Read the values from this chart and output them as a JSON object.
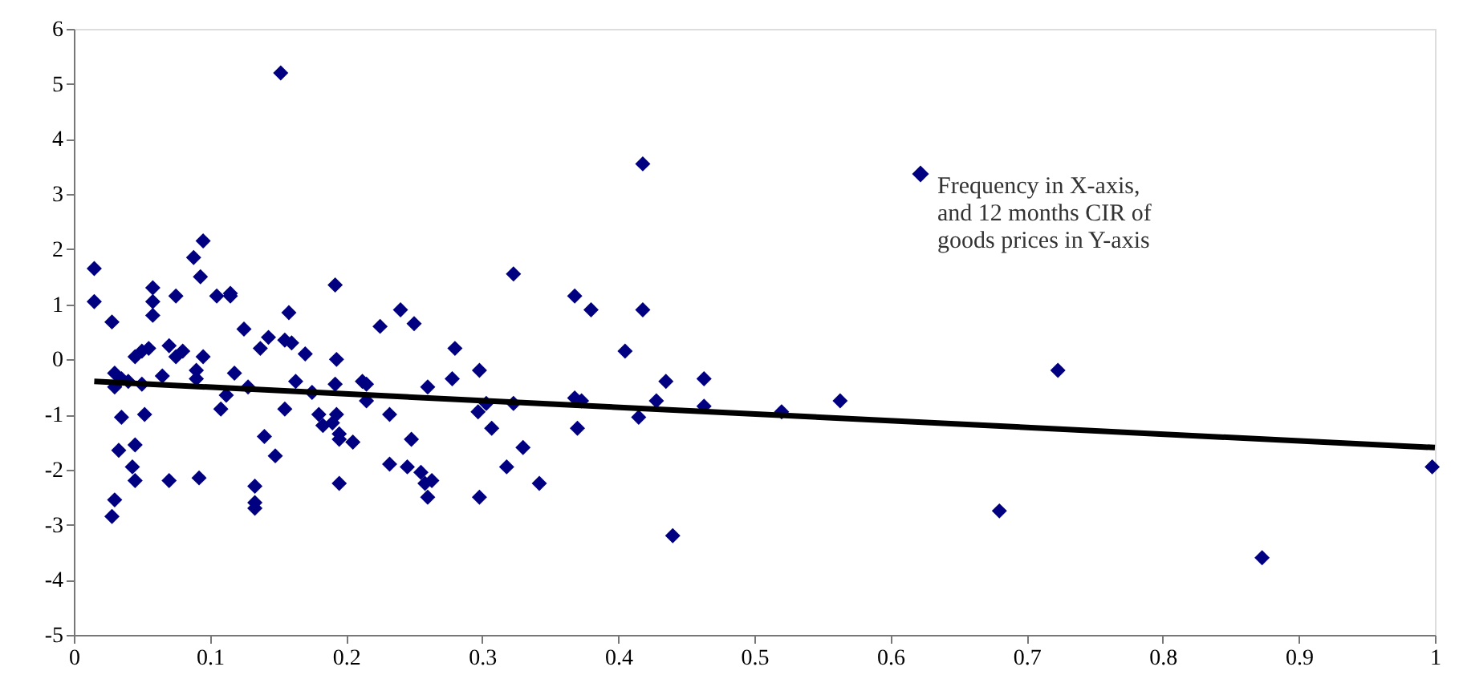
{
  "chart_data": {
    "type": "scatter",
    "xlim": [
      0,
      1
    ],
    "xticks": [
      0,
      0.1,
      0.2,
      0.3,
      0.4,
      0.5,
      0.6,
      0.7,
      0.8,
      0.9,
      1
    ],
    "ylim": [
      -5,
      6
    ],
    "yticks": [
      -5,
      -4,
      -3,
      -2,
      -1,
      0,
      1,
      2,
      3,
      4,
      5,
      6
    ],
    "grid": false,
    "legend": "top right",
    "marker": "diamond",
    "series": [
      {
        "name": "Frequency in X-axis,\nand 12 months CIR of\ngoods prices in Y-axis",
        "color": "#000080",
        "x": [
          0.015,
          0.015,
          0.028,
          0.03,
          0.03,
          0.035,
          0.035,
          0.033,
          0.03,
          0.028,
          0.04,
          0.045,
          0.045,
          0.043,
          0.045,
          0.05,
          0.05,
          0.052,
          0.055,
          0.058,
          0.058,
          0.058,
          0.065,
          0.07,
          0.07,
          0.075,
          0.075,
          0.08,
          0.088,
          0.09,
          0.09,
          0.092,
          0.093,
          0.095,
          0.095,
          0.105,
          0.108,
          0.112,
          0.115,
          0.115,
          0.118,
          0.125,
          0.128,
          0.133,
          0.133,
          0.133,
          0.137,
          0.14,
          0.143,
          0.148,
          0.152,
          0.155,
          0.155,
          0.158,
          0.16,
          0.163,
          0.17,
          0.175,
          0.18,
          0.183,
          0.19,
          0.192,
          0.192,
          0.193,
          0.193,
          0.195,
          0.195,
          0.195,
          0.205,
          0.212,
          0.215,
          0.215,
          0.225,
          0.232,
          0.232,
          0.24,
          0.245,
          0.248,
          0.25,
          0.255,
          0.258,
          0.26,
          0.26,
          0.263,
          0.278,
          0.28,
          0.297,
          0.298,
          0.298,
          0.303,
          0.307,
          0.318,
          0.323,
          0.323,
          0.33,
          0.342,
          0.368,
          0.368,
          0.37,
          0.373,
          0.38,
          0.405,
          0.415,
          0.418,
          0.418,
          0.428,
          0.435,
          0.44,
          0.463,
          0.463,
          0.52,
          0.563,
          0.68,
          0.723,
          0.873,
          0.998
        ],
        "values": [
          1.65,
          1.05,
          0.68,
          -0.25,
          -0.5,
          -0.35,
          -1.05,
          -1.65,
          -2.55,
          -2.85,
          -0.4,
          0.05,
          -1.55,
          -1.95,
          -2.2,
          0.15,
          -0.45,
          -1.0,
          0.2,
          1.3,
          1.05,
          0.8,
          -0.3,
          0.25,
          -2.2,
          1.15,
          0.05,
          0.15,
          1.85,
          -0.2,
          -0.35,
          -2.15,
          1.5,
          2.15,
          0.05,
          1.15,
          -0.9,
          -0.65,
          1.2,
          1.15,
          -0.25,
          0.55,
          -0.5,
          -2.3,
          -2.6,
          -2.7,
          0.2,
          -1.4,
          0.4,
          -1.75,
          5.2,
          0.35,
          -0.9,
          0.85,
          0.3,
          -0.4,
          0.1,
          -0.6,
          -1.0,
          -1.2,
          -1.15,
          1.35,
          -0.45,
          0.0,
          -1.0,
          -1.35,
          -1.45,
          -2.25,
          -1.5,
          -0.4,
          -0.45,
          -0.75,
          0.6,
          -1.0,
          -1.9,
          0.9,
          -1.95,
          -1.45,
          0.65,
          -2.05,
          -2.25,
          -2.5,
          -0.5,
          -2.2,
          -0.35,
          0.2,
          -0.95,
          -0.2,
          -2.5,
          -0.8,
          -1.25,
          -1.95,
          1.55,
          -0.8,
          -1.6,
          -2.25,
          1.15,
          -0.7,
          -1.25,
          -0.75,
          0.9,
          0.15,
          -1.05,
          3.55,
          0.9,
          -0.75,
          -0.4,
          -3.2,
          -0.35,
          -0.85,
          -0.95,
          -0.75,
          -2.75,
          -0.2,
          -3.6,
          -1.95
        ]
      },
      {
        "type": "line",
        "color": "#000000",
        "line_style": "solid",
        "marker": "none",
        "x": [
          0.015,
          1.0
        ],
        "values": [
          -0.4,
          -1.6
        ]
      }
    ]
  }
}
